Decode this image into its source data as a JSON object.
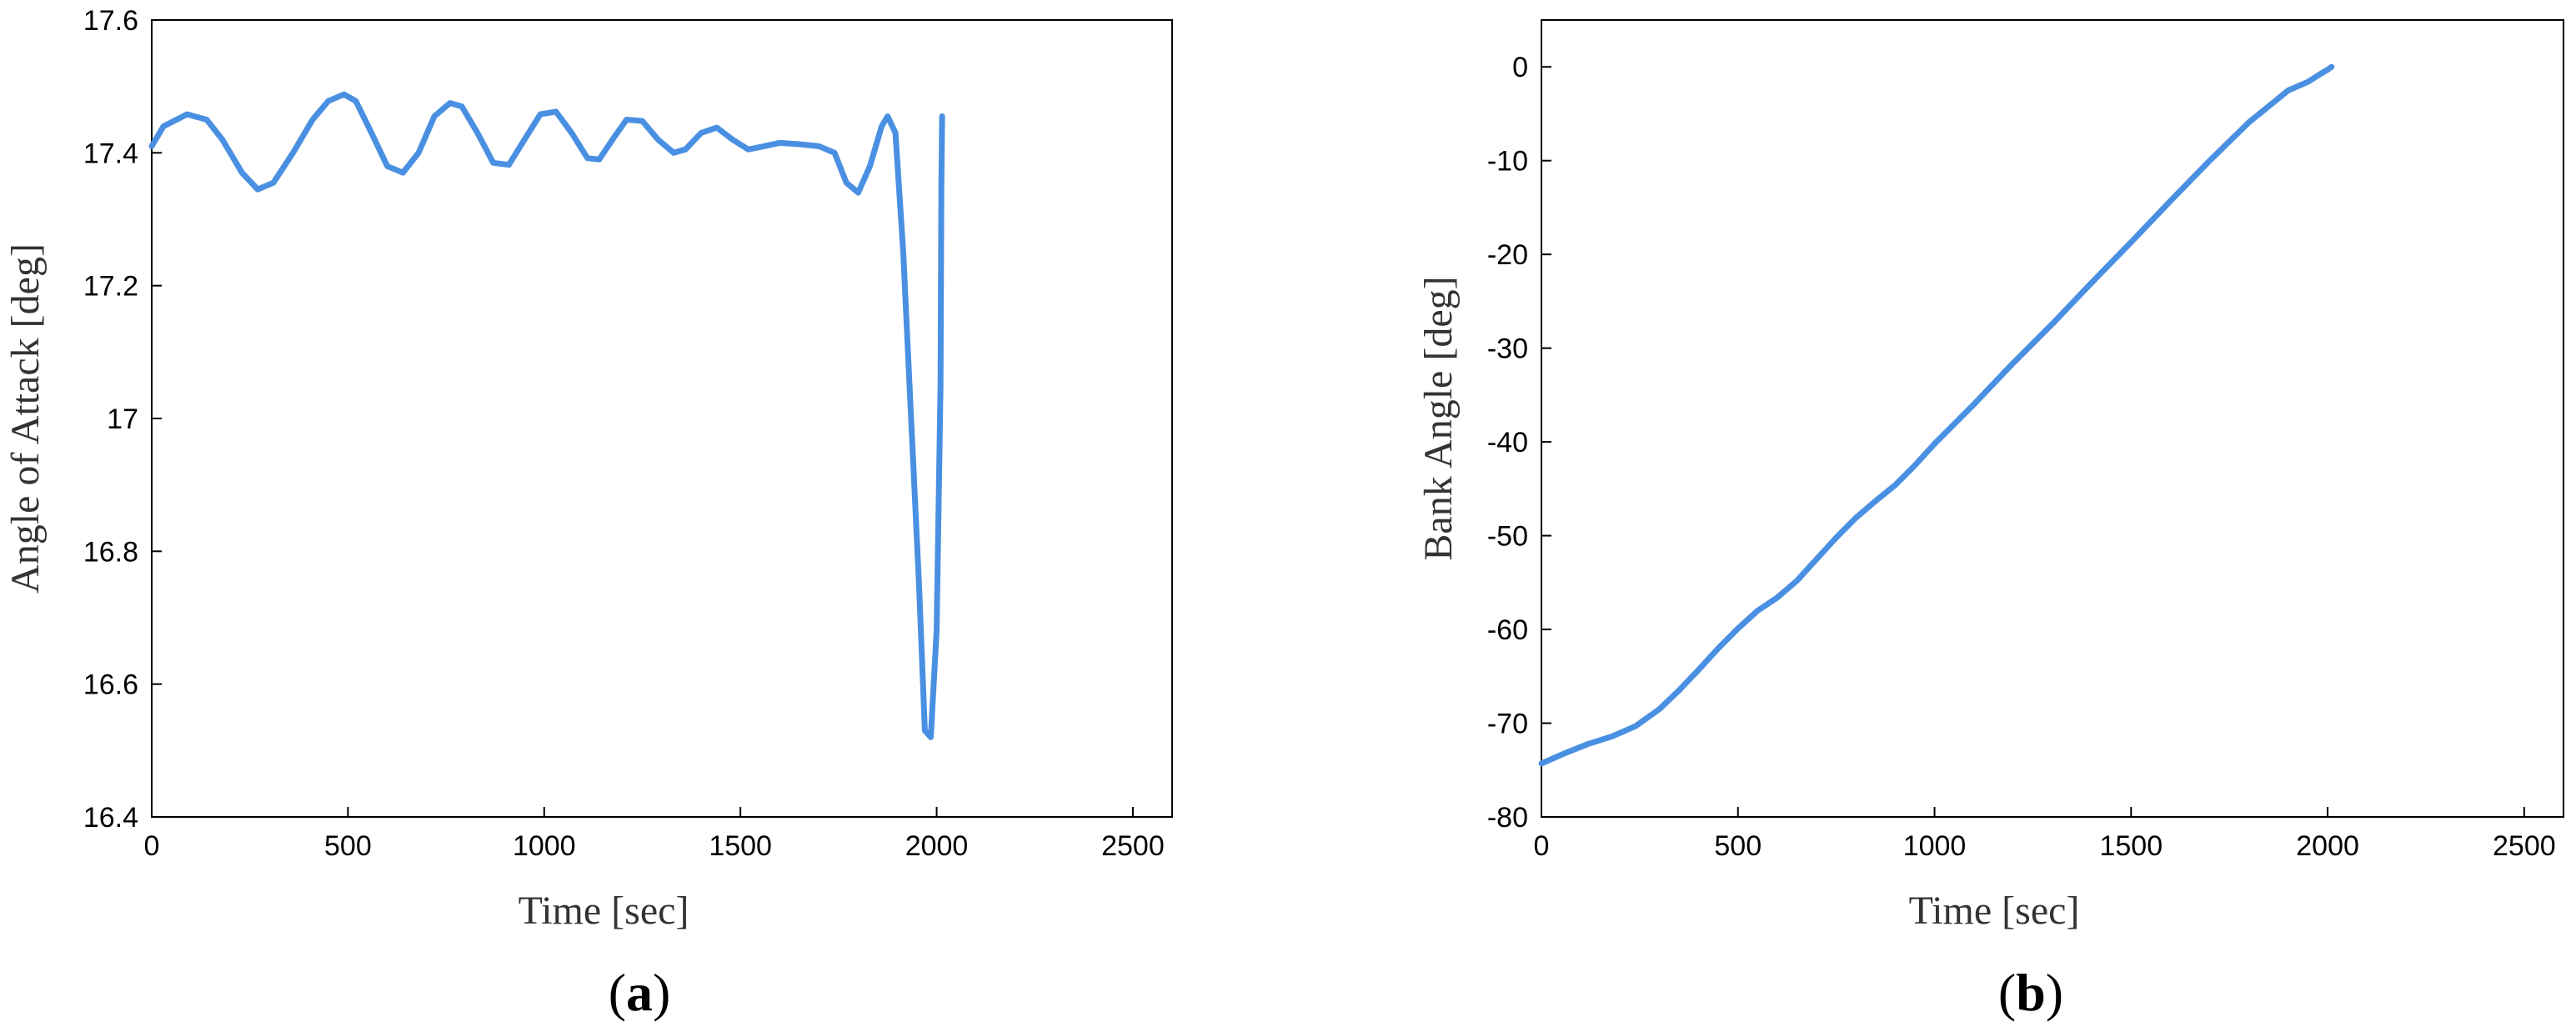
{
  "chart_data": [
    {
      "type": "line",
      "panel_label": "a",
      "xlabel": "Time [sec]",
      "ylabel": "Angle of Attack [deg]",
      "xlim": [
        0,
        2600
      ],
      "ylim": [
        16.4,
        17.6
      ],
      "xticks": [
        0,
        500,
        1000,
        1500,
        2000,
        2500
      ],
      "xtick_labels": [
        "0",
        "500",
        "1000",
        "1500",
        "2000",
        "2500"
      ],
      "yticks": [
        16.4,
        16.6,
        16.8,
        17.0,
        17.2,
        17.4,
        17.6
      ],
      "ytick_labels": [
        "16.4",
        "16.6",
        "16.8",
        "17",
        "17.2",
        "17.4",
        "17.6"
      ],
      "grid": false,
      "line_color": "#4a90e2",
      "x": [
        0,
        30,
        90,
        140,
        180,
        230,
        270,
        310,
        360,
        410,
        450,
        490,
        520,
        560,
        600,
        640,
        680,
        720,
        760,
        790,
        830,
        870,
        910,
        950,
        990,
        1030,
        1070,
        1110,
        1140,
        1180,
        1210,
        1250,
        1290,
        1330,
        1360,
        1400,
        1440,
        1480,
        1520,
        1560,
        1600,
        1650,
        1700,
        1740,
        1770,
        1800,
        1830,
        1860,
        1875,
        1895,
        1915,
        1935,
        1955,
        1970,
        1985,
        2000,
        2010,
        2012,
        2014
      ],
      "y": [
        17.41,
        17.44,
        17.458,
        17.45,
        17.42,
        17.37,
        17.345,
        17.355,
        17.4,
        17.45,
        17.478,
        17.488,
        17.478,
        17.43,
        17.38,
        17.37,
        17.4,
        17.455,
        17.475,
        17.47,
        17.43,
        17.385,
        17.382,
        17.42,
        17.458,
        17.462,
        17.43,
        17.392,
        17.39,
        17.425,
        17.45,
        17.448,
        17.42,
        17.4,
        17.405,
        17.43,
        17.438,
        17.42,
        17.405,
        17.41,
        17.415,
        17.413,
        17.41,
        17.4,
        17.355,
        17.34,
        17.38,
        17.44,
        17.455,
        17.43,
        17.25,
        17.0,
        16.75,
        16.53,
        16.52,
        16.68,
        17.05,
        17.35,
        17.455
      ]
    },
    {
      "type": "line",
      "panel_label": "b",
      "xlabel": "Time [sec]",
      "ylabel": "Bank Angle [deg]",
      "xlim": [
        0,
        2600
      ],
      "ylim": [
        -80,
        5
      ],
      "xticks": [
        0,
        500,
        1000,
        1500,
        2000,
        2500
      ],
      "xtick_labels": [
        "0",
        "500",
        "1000",
        "1500",
        "2000",
        "2500"
      ],
      "yticks": [
        -80,
        -70,
        -60,
        -50,
        -40,
        -30,
        -20,
        -10,
        0
      ],
      "ytick_labels": [
        "-80",
        "-70",
        "-60",
        "-50",
        "-40",
        "-30",
        "-20",
        "-10",
        "0"
      ],
      "grid": false,
      "line_color": "#4a90e2",
      "x": [
        0,
        60,
        120,
        180,
        240,
        300,
        350,
        400,
        450,
        500,
        550,
        600,
        650,
        700,
        750,
        800,
        850,
        900,
        950,
        1000,
        1100,
        1200,
        1300,
        1400,
        1500,
        1600,
        1700,
        1800,
        1900,
        1950,
        1980,
        2000,
        2010
      ],
      "y": [
        -74.3,
        -73.2,
        -72.2,
        -71.4,
        -70.3,
        -68.5,
        -66.5,
        -64.3,
        -62.0,
        -59.9,
        -58.0,
        -56.6,
        -54.8,
        -52.5,
        -50.2,
        -48.1,
        -46.3,
        -44.6,
        -42.5,
        -40.2,
        -36.0,
        -31.6,
        -27.4,
        -23.0,
        -18.7,
        -14.3,
        -10.0,
        -5.9,
        -2.5,
        -1.6,
        -0.8,
        -0.3,
        0
      ]
    }
  ]
}
